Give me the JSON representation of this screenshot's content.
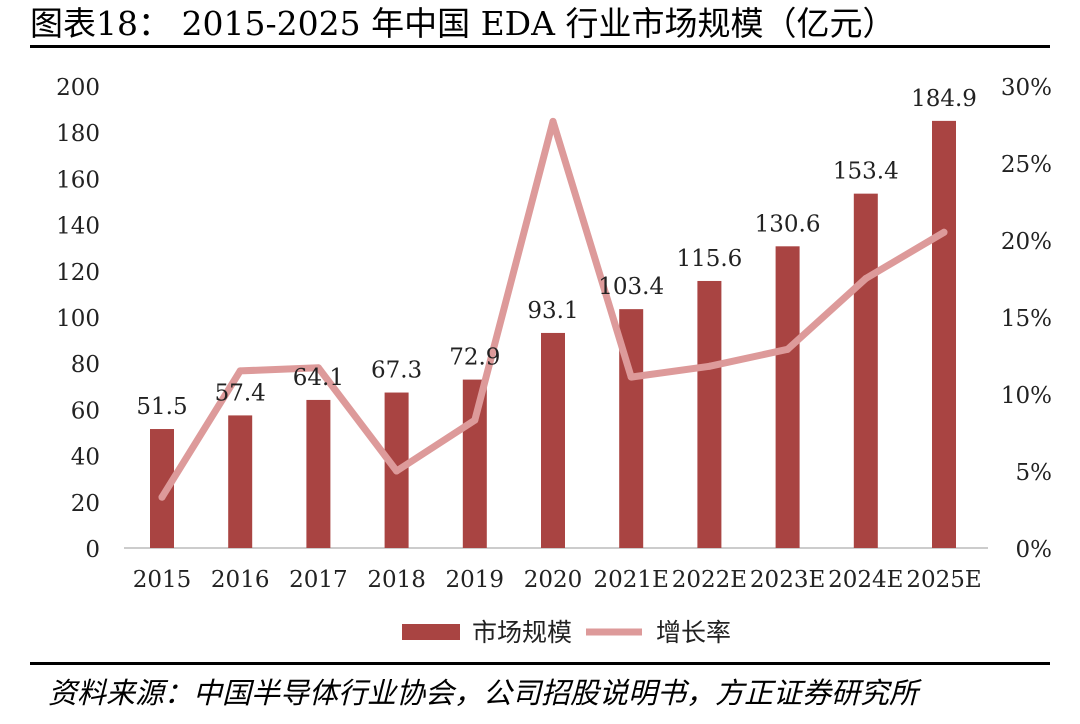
{
  "header": {
    "title": "图表18：  2015-2025 年中国 EDA 行业市场规模（亿元）"
  },
  "footer": {
    "source": "资料来源：中国半导体行业协会，公司招股说明书，方正证券研究所"
  },
  "colors": {
    "bar": "#a94442",
    "line": "#dd9a9a"
  },
  "chart_data": {
    "type": "bar",
    "categories": [
      "2015",
      "2016",
      "2017",
      "2018",
      "2019",
      "2020",
      "2021E",
      "2022E",
      "2023E",
      "2024E",
      "2025E"
    ],
    "series": [
      {
        "name": "市场规模",
        "type": "bar",
        "axis": "left",
        "values": [
          51.5,
          57.4,
          64.1,
          67.3,
          72.9,
          93.1,
          103.4,
          115.6,
          130.6,
          153.4,
          184.9
        ]
      },
      {
        "name": "增长率",
        "type": "line",
        "axis": "right",
        "values": [
          0.033,
          0.115,
          0.117,
          0.05,
          0.083,
          0.277,
          0.111,
          0.118,
          0.129,
          0.175,
          0.205
        ]
      }
    ],
    "data_labels": [
      "51.5",
      "57.4",
      "64.1",
      "67.3",
      "72.9",
      "93.1",
      "103.4",
      "115.6",
      "130.6",
      "153.4",
      "184.9"
    ],
    "y_left": {
      "min": 0,
      "max": 200,
      "ticks": [
        "0",
        "20",
        "40",
        "60",
        "80",
        "100",
        "120",
        "140",
        "160",
        "180",
        "200"
      ]
    },
    "y_right": {
      "min": 0,
      "max": 0.3,
      "ticks": [
        "0%",
        "5%",
        "10%",
        "15%",
        "20%",
        "25%",
        "30%"
      ]
    },
    "legend_position": "bottom"
  }
}
